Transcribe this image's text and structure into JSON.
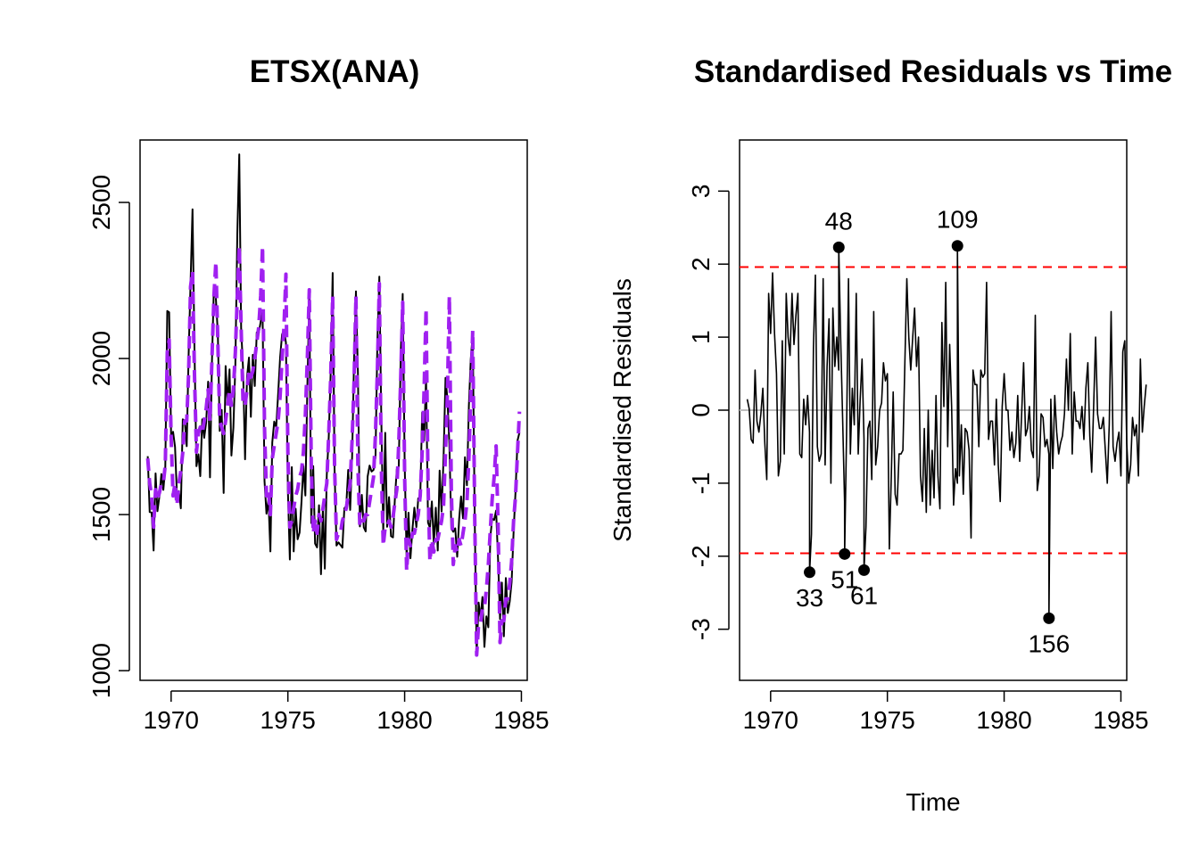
{
  "chart_data": [
    {
      "type": "line",
      "title": "ETSX(ANA)",
      "xlabel": "",
      "ylabel": "",
      "xlim": [
        1968.67,
        1985.25
      ],
      "ylim": [
        969,
        2700
      ],
      "xticks": [
        1970,
        1975,
        1980,
        1985
      ],
      "yticks": [
        1000,
        1500,
        2000,
        2500
      ],
      "grid": false,
      "legend": "none",
      "colors": {
        "actual": "#000000",
        "fitted": "#a020f0"
      },
      "x_start": 1969.0,
      "x_step": 0.0833333,
      "series": [
        {
          "role": "actual",
          "values": [
            1687,
            1508,
            1507,
            1385,
            1632,
            1511,
            1559,
            1630,
            1579,
            1653,
            2152,
            2148,
            1752,
            1765,
            1717,
            1558,
            1575,
            1520,
            1805,
            1800,
            1719,
            2008,
            2242,
            2478,
            2030,
            1655,
            1693,
            1623,
            1805,
            1746,
            1795,
            1926,
            1619,
            1992,
            2233,
            2192,
            2080,
            1768,
            1835,
            1569,
            1976,
            1853,
            1965,
            1689,
            1778,
            1976,
            2397,
            2654,
            2097,
            1963,
            1677,
            1941,
            2003,
            1813,
            2012,
            1912,
            2084,
            2080,
            2118,
            2150,
            1608,
            1503,
            1548,
            1382,
            1731,
            1798,
            1779,
            1887,
            2004,
            2077,
            2092,
            2051,
            1577,
            1356,
            1652,
            1382,
            1519,
            1421,
            1442,
            1543,
            1656,
            1561,
            1905,
            2199,
            1473,
            1655,
            1407,
            1395,
            1530,
            1309,
            1526,
            1327,
            1627,
            1748,
            1958,
            2274,
            1648,
            1401,
            1411,
            1403,
            1394,
            1520,
            1528,
            1643,
            1515,
            1685,
            2000,
            2215,
            1956,
            1462,
            1563,
            1459,
            1446,
            1622,
            1657,
            1638,
            1643,
            1683,
            2050,
            2262,
            1813,
            1445,
            1762,
            1461,
            1556,
            1431,
            1427,
            1554,
            1645,
            1653,
            2016,
            2207,
            1665,
            1361,
            1506,
            1360,
            1453,
            1522,
            1460,
            1552,
            1548,
            1827,
            1737,
            1941,
            1474,
            1458,
            1542,
            1404,
            1522,
            1385,
            1641,
            1510,
            1681,
            1938,
            1868,
            1726,
            1456,
            1445,
            1456,
            1365,
            1487,
            1558,
            1488,
            1684,
            1594,
            1850,
            1998,
            2079,
            1494,
            1057,
            1218,
            1168,
            1236,
            1076,
            1174,
            1139,
            1427,
            1487,
            1483,
            1513,
            1357,
            1165,
            1282,
            1110,
            1297,
            1185,
            1222,
            1284,
            1444,
            1575,
            1737,
            1763
          ]
        },
        {
          "role": "fitted",
          "values": [
            1680,
            1600,
            1560,
            1460,
            1580,
            1550,
            1570,
            1600,
            1600,
            1660,
            2020,
            2060,
            1750,
            1560,
            1600,
            1530,
            1600,
            1640,
            1700,
            1800,
            1800,
            1950,
            2230,
            2280,
            1950,
            1700,
            1760,
            1780,
            1760,
            1800,
            1840,
            1900,
            1800,
            2000,
            2200,
            2310,
            2050,
            1800,
            1780,
            1760,
            1800,
            1850,
            1900,
            1850,
            1900,
            2020,
            2200,
            2360,
            2100,
            1850,
            1850,
            1900,
            1960,
            1940,
            1960,
            2000,
            2050,
            2100,
            2200,
            2360,
            1780,
            1560,
            1580,
            1500,
            1680,
            1720,
            1760,
            1800,
            1880,
            2000,
            2100,
            2270,
            1700,
            1460,
            1480,
            1520,
            1560,
            1580,
            1620,
            1640,
            1700,
            1820,
            2000,
            2220,
            1660,
            1440,
            1480,
            1440,
            1500,
            1480,
            1520,
            1560,
            1600,
            1760,
            1940,
            2200,
            1660,
            1420,
            1440,
            1440,
            1480,
            1500,
            1520,
            1560,
            1600,
            1740,
            1930,
            2200,
            1650,
            1460,
            1480,
            1480,
            1500,
            1500,
            1540,
            1580,
            1620,
            1760,
            1960,
            2240,
            1660,
            1400,
            1460,
            1460,
            1480,
            1460,
            1490,
            1540,
            1580,
            1730,
            1940,
            2180,
            1620,
            1320,
            1420,
            1400,
            1440,
            1440,
            1470,
            1500,
            1560,
            1700,
            1900,
            2160,
            1600,
            1350,
            1420,
            1380,
            1420,
            1420,
            1450,
            1480,
            1530,
            1700,
            1900,
            2200,
            1580,
            1340,
            1400,
            1380,
            1420,
            1400,
            1440,
            1480,
            1540,
            1680,
            1880,
            2090,
            1500,
            1050,
            1150,
            1150,
            1200,
            1200,
            1260,
            1340,
            1450,
            1550,
            1620,
            1720,
            1470,
            1090,
            1160,
            1160,
            1230,
            1230,
            1280,
            1350,
            1480,
            1560,
            1700,
            1830
          ]
        }
      ]
    },
    {
      "type": "line",
      "title": "Standardised Residuals vs Time",
      "xlabel": "Time",
      "ylabel": "Standardised Residuals",
      "xlim": [
        1968.67,
        1985.25
      ],
      "ylim": [
        -3.7,
        3.7
      ],
      "xticks": [
        1970,
        1975,
        1980,
        1985
      ],
      "yticks": [
        -3,
        -2,
        -1,
        0,
        1,
        2,
        3
      ],
      "grid": false,
      "legend": "none",
      "colors": {
        "line": "#000000",
        "bounds": "#ff0000",
        "zero": "#bebebe"
      },
      "x_start": 1969.0,
      "x_step": 0.0833333,
      "bounds": [
        -1.96,
        1.96
      ],
      "zero_line": 0,
      "values": [
        0.15,
        0.02,
        -0.4,
        -0.45,
        0.55,
        -0.15,
        -0.3,
        -0.05,
        0.3,
        -0.45,
        -0.95,
        1.6,
        1.05,
        1.88,
        1.05,
        0.5,
        -0.9,
        -0.7,
        0.95,
        -0.6,
        1.6,
        1.0,
        0.75,
        1.6,
        0.9,
        1.3,
        1.6,
        -0.6,
        -0.65,
        0.15,
        -0.2,
        0.2,
        -0.3,
        -1.7,
        0.85,
        1.85,
        -0.5,
        -0.7,
        -0.6,
        1.8,
        -0.75,
        0.6,
        1.25,
        -1.0,
        1.4,
        0.6,
        1.0,
        0.55,
        1.0,
        -0.1,
        -1.25,
        -0.35,
        1.8,
        -0.6,
        0.3,
        -0.2,
        1.6,
        -0.6,
        0.15,
        0.7,
        -0.4,
        -1.6,
        -0.25,
        -0.15,
        -0.95,
        1.35,
        -0.75,
        -0.5,
        0.0,
        0.1,
        0.65,
        0.4,
        0.5,
        -1.9,
        -0.9,
        0.25,
        -1.15,
        -1.3,
        -0.6,
        -0.6,
        -0.55,
        0.65,
        1.8,
        1.0,
        0.55,
        1.0,
        1.4,
        0.6,
        1.0,
        -0.9,
        -1.25,
        -0.25,
        -1.4,
        0.0,
        -1.3,
        -0.55,
        -1.2,
        0.2,
        -0.9,
        -1.35,
        1.2,
        0.05,
        1.75,
        -0.5,
        0.9,
        0.05,
        -1.3,
        -0.8,
        -1.0,
        -0.9,
        -0.2,
        -1.15,
        -0.25,
        -0.3,
        -0.55,
        -1.75,
        0.55,
        0.35,
        0.35,
        -0.5,
        0.55,
        0.45,
        0.5,
        1.75,
        -0.4,
        -0.15,
        -0.15,
        -0.75,
        0.15,
        -0.75,
        -1.25,
        0.05,
        0.5,
        0.0,
        0.0,
        -0.55,
        -0.3,
        -0.65,
        -0.45,
        0.2,
        -0.7,
        -0.05,
        0.65,
        -0.35,
        -0.25,
        0.05,
        -0.55,
        -0.65,
        1.3,
        -1.1,
        -0.9,
        -0.05,
        -0.1,
        -0.5,
        -0.4,
        -0.6,
        0.15,
        -0.8,
        0.2,
        -0.3,
        -0.6,
        -0.45,
        -0.35,
        -0.05,
        0.7,
        0.0,
        1.05,
        -0.6,
        0.25,
        -0.15,
        -0.15,
        -0.25,
        0.05,
        -0.4,
        0.3,
        0.65,
        -0.35,
        -0.85,
        0.05,
        1.0,
        -0.05,
        -0.25,
        -0.25,
        -0.1,
        -0.55,
        -1.0,
        -0.2,
        1.35,
        -0.5,
        -0.7,
        -0.45,
        -0.3,
        -0.9,
        0.8,
        0.95,
        -0.45,
        -1.0,
        -0.75,
        -0.1,
        -0.35,
        -0.2,
        -0.9,
        0.7,
        -0.3,
        0.05,
        0.35
      ],
      "annotations": [
        {
          "label": "33",
          "x": 1971.67,
          "y": -2.22
        },
        {
          "label": "48",
          "x": 1972.92,
          "y": 2.23
        },
        {
          "label": "51",
          "x": 1973.17,
          "y": -1.97
        },
        {
          "label": "61",
          "x": 1974.0,
          "y": -2.19
        },
        {
          "label": "109",
          "x": 1978.0,
          "y": 2.25
        },
        {
          "label": "156",
          "x": 1981.92,
          "y": -2.85
        }
      ]
    }
  ]
}
